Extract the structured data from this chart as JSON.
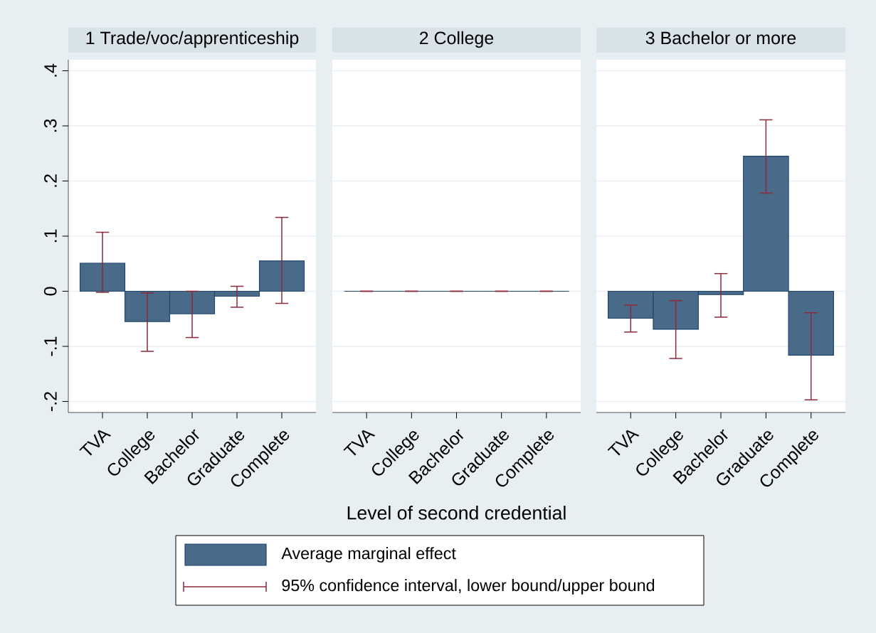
{
  "chart_data": [
    {
      "type": "bar",
      "title": "1 Trade/voc/apprenticeship",
      "categories": [
        "TVA",
        "College",
        "Bachelor",
        "Graduate",
        "Complete"
      ],
      "series": [
        {
          "color": "#4a6a8a",
          "values": [
            0.051,
            -0.055,
            -0.041,
            -0.009,
            0.055
          ],
          "errors": [
            [
              -0.002,
              0.107
            ],
            [
              -0.109,
              -0.003
            ],
            [
              -0.084,
              0.0
            ],
            [
              -0.029,
              0.009
            ],
            [
              -0.022,
              0.134
            ]
          ]
        }
      ],
      "ylim": [
        -0.22,
        0.42
      ],
      "yticks": [
        {
          "value": -0.2,
          "label": "-.2"
        },
        {
          "value": -0.1,
          "label": "-.1"
        },
        0,
        {
          "value": 0.1,
          "label": ".1"
        },
        {
          "value": 0.2,
          "label": ".2"
        },
        {
          "value": 0.3,
          "label": ".3"
        },
        {
          "value": 0.4,
          "label": ".4"
        }
      ],
      "grid": "y"
    },
    {
      "type": "bar",
      "title": "2 College",
      "xlabel": "Level of second credential",
      "categories": [
        "TVA",
        "College",
        "Bachelor",
        "Graduate",
        "Complete"
      ],
      "series": [
        {
          "name": "Average marginal effect",
          "color": "#4a6a8a",
          "values": [
            0,
            0,
            0,
            0,
            0
          ],
          "errors": [
            [
              0,
              0
            ],
            [
              0,
              0
            ],
            [
              0,
              0
            ],
            [
              0,
              0
            ],
            [
              0,
              0
            ]
          ]
        }
      ],
      "ylim": [
        -0.22,
        0.42
      ],
      "yticks": [
        {
          "value": -0.2,
          "label": null
        },
        {
          "value": -0.1,
          "label": null
        },
        {
          "value": 0,
          "label": null
        },
        {
          "value": 0.1,
          "label": null
        },
        {
          "value": 0.2,
          "label": null
        },
        {
          "value": 0.3,
          "label": null
        },
        {
          "value": 0.4,
          "label": null
        }
      ],
      "grid": "y",
      "tick_labels": "x",
      "legend": "bottom",
      "annotations": [
        "95% confidence interval, lower bound/upper bound"
      ]
    },
    {
      "type": "bar",
      "title": "3 Bachelor or more",
      "categories": [
        "TVA",
        "College",
        "Bachelor",
        "Graduate",
        "Complete"
      ],
      "series": [
        {
          "color": "#4a6a8a",
          "values": [
            -0.049,
            -0.069,
            -0.006,
            0.245,
            -0.116
          ],
          "errors": [
            [
              -0.074,
              -0.025
            ],
            [
              -0.122,
              -0.017
            ],
            [
              -0.047,
              0.032
            ],
            [
              0.178,
              0.311
            ],
            [
              -0.197,
              -0.039
            ]
          ]
        }
      ],
      "ylim": [
        -0.22,
        0.42
      ],
      "yticks": [
        {
          "value": -0.2,
          "label": null
        },
        {
          "value": -0.1,
          "label": null
        },
        {
          "value": 0,
          "label": null
        },
        {
          "value": 0.1,
          "label": null
        },
        {
          "value": 0.2,
          "label": null
        },
        {
          "value": 0.3,
          "label": null
        },
        {
          "value": 0.4,
          "label": null
        }
      ],
      "grid": "y",
      "tick_labels": "x"
    }
  ]
}
